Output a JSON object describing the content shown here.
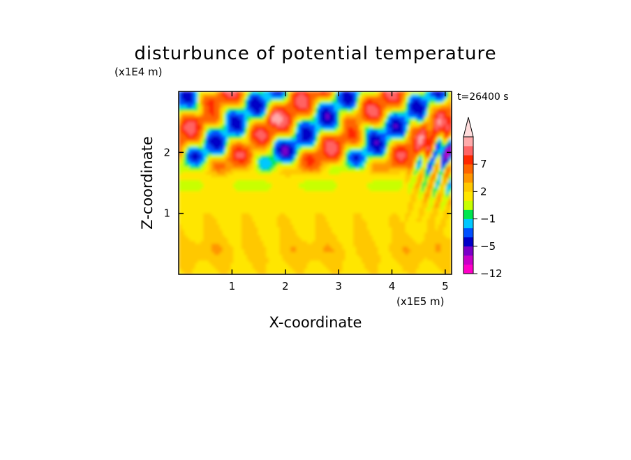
{
  "chart_data": {
    "type": "heatmap",
    "title": "disturbunce of potential temperature",
    "xlabel": "X-coordinate",
    "ylabel": "Z-coordinate",
    "x_unit": "(x1E5 m)",
    "y_unit": "(x1E4 m)",
    "time_stamp": "t=26400 s",
    "xlim": [
      0,
      5.12
    ],
    "ylim": [
      0,
      3.0
    ],
    "x_ticks": [
      {
        "value": 1,
        "label": "1"
      },
      {
        "value": 2,
        "label": "2"
      },
      {
        "value": 3,
        "label": "3"
      },
      {
        "value": 4,
        "label": "4"
      },
      {
        "value": 5,
        "label": "5"
      }
    ],
    "y_ticks": [
      {
        "value": 1,
        "label": "1"
      },
      {
        "value": 2,
        "label": "2"
      }
    ],
    "colorbar": {
      "extend": "max",
      "tick_labels": [
        "7",
        "2",
        "−1",
        "−5",
        "−12"
      ],
      "colors": [
        "#ff00c8",
        "#c800c8",
        "#7a00c8",
        "#0000c8",
        "#0050ff",
        "#00c8ff",
        "#00e650",
        "#c8ff00",
        "#ffe600",
        "#ffc800",
        "#ff9600",
        "#ff6400",
        "#ff2800",
        "#ff6464",
        "#ffaaaa",
        "#ffdcdc"
      ]
    },
    "regions": [
      {
        "z_range": [
          0.0,
          0.9
        ],
        "pattern": "mostly yellow-orange (~0 to 2), weak orange patches near z 0.4"
      },
      {
        "z_range": [
          0.9,
          1.3
        ],
        "pattern": "yellow / yellow-green (~0 to 1)"
      },
      {
        "z_range": [
          1.3,
          1.7
        ],
        "pattern": "green and cyan band (~-1), orange streaks"
      },
      {
        "z_range": [
          1.7,
          3.0
        ],
        "pattern": "strong alternating waves: blue/purple cores (-5 to -7) and orange/red cores (up to ~7), tilted wave fronts toward x 4.5-5"
      }
    ]
  }
}
